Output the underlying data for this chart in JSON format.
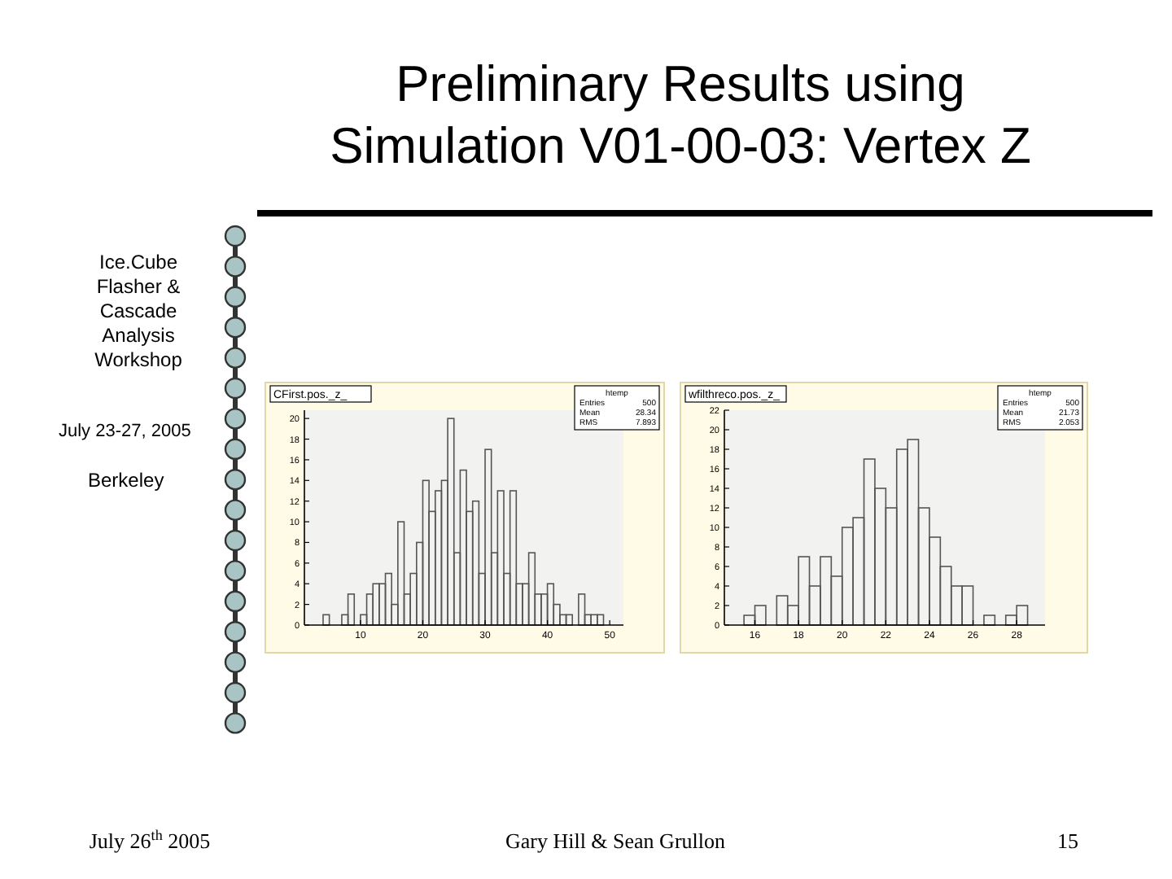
{
  "chart_data": [
    {
      "type": "other",
      "title": "Preliminary Results using Simulation V01-00-03: Vertex Z",
      "annotations": [
        "Ice.Cube Flasher & Cascade Analysis Workshop",
        "July 23-27, 2005",
        "Berkeley",
        "July 26$^{th}$ 2005",
        "Gary Hill & Sean Grullon",
        "15"
      ]
    },
    {
      "type": "histogram",
      "title": "CFirst.pos._z_",
      "bins": [
        1,
        2,
        3,
        4,
        5,
        6,
        7,
        8,
        9,
        10,
        11,
        12,
        13,
        14,
        15,
        16,
        17,
        18,
        19,
        20,
        21,
        22,
        23,
        24,
        25,
        26,
        27,
        28,
        29,
        30,
        31,
        32,
        33,
        34,
        35,
        36,
        37,
        38,
        39,
        40,
        41,
        42,
        43,
        44,
        45,
        46,
        47,
        48,
        49,
        50,
        51,
        52
      ],
      "values": [
        0,
        0,
        0,
        1,
        0,
        0,
        1,
        3,
        0,
        1,
        3,
        4,
        4,
        5,
        2,
        10,
        3,
        5,
        8,
        14,
        11,
        13,
        14,
        20,
        7,
        15,
        11,
        12,
        5,
        17,
        7,
        13,
        5,
        13,
        4,
        4,
        7,
        3,
        3,
        4,
        2,
        1,
        1,
        0,
        3,
        1,
        1,
        1,
        0,
        0,
        0
      ],
      "color": "#555555",
      "xlim": [
        1,
        52.2
      ],
      "xticks": [
        10,
        20,
        30,
        40,
        50
      ],
      "ylim": [
        0,
        20.8
      ],
      "yticks": [
        0,
        2,
        4,
        6,
        8,
        10,
        12,
        14,
        16,
        18,
        20
      ],
      "annotations": [
        "htemp",
        "Entries",
        "500",
        "Mean",
        "28.34",
        "RMS",
        "7.893"
      ]
    },
    {
      "type": "histogram",
      "title": "wfilthreco.pos._z_",
      "bins": [
        15,
        15.5,
        16,
        16.5,
        17,
        17.5,
        18,
        18.5,
        19,
        19.5,
        20,
        20.5,
        21,
        21.5,
        22,
        22.5,
        23,
        23.5,
        24,
        24.5,
        25,
        25.5,
        26,
        26.5,
        27,
        27.5,
        28,
        28.5,
        29
      ],
      "values": [
        0,
        1,
        2,
        0,
        3,
        2,
        7,
        4,
        7,
        5,
        10,
        11,
        17,
        14,
        12,
        18,
        19,
        12,
        9,
        6,
        4,
        4,
        0,
        1,
        0,
        1,
        2,
        0
      ],
      "color": "#555555",
      "xlim": [
        14.6,
        29.3
      ],
      "xticks": [
        16,
        18,
        20,
        22,
        24,
        26,
        28
      ],
      "ylim": [
        0,
        22
      ],
      "yticks": [
        0,
        2,
        4,
        6,
        8,
        10,
        12,
        14,
        16,
        18,
        20,
        22
      ],
      "annotations": [
        "htemp",
        "Entries",
        "500",
        "Mean",
        "21.73",
        "RMS",
        "2.053"
      ]
    }
  ]
}
